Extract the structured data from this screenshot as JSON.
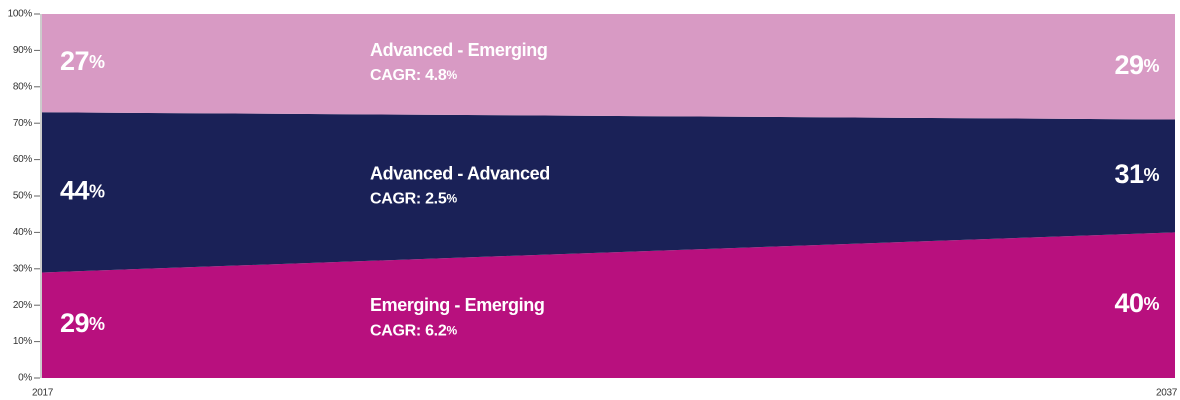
{
  "chart_data": {
    "type": "stacked_area",
    "categories": [
      "2017",
      "2037"
    ],
    "series": [
      {
        "name": "Emerging - Emerging",
        "color": "#b8107e",
        "values": [
          29,
          40
        ],
        "value_labels": [
          "29%",
          "40%"
        ],
        "annotation": "CAGR: 6.2%"
      },
      {
        "name": "Advanced - Advanced",
        "color": "#1a2157",
        "values": [
          44,
          31
        ],
        "value_labels": [
          "44%",
          "31%"
        ],
        "annotation": "CAGR: 2.5%"
      },
      {
        "name": "Advanced - Emerging",
        "color": "#d89ac4",
        "values": [
          27,
          29
        ],
        "value_labels": [
          "27%",
          "29%"
        ],
        "annotation": "CAGR: 4.8%"
      }
    ],
    "ylim": [
      0,
      100
    ],
    "yticks": [
      {
        "value": 0,
        "label": "0%"
      },
      {
        "value": 10,
        "label": "10%"
      },
      {
        "value": 20,
        "label": "20%"
      },
      {
        "value": 30,
        "label": "30%"
      },
      {
        "value": 40,
        "label": "40%"
      },
      {
        "value": 50,
        "label": "50%"
      },
      {
        "value": 60,
        "label": "60%"
      },
      {
        "value": 70,
        "label": "70%"
      },
      {
        "value": 80,
        "label": "80%"
      },
      {
        "value": 90,
        "label": "90%"
      },
      {
        "value": 100,
        "label": "100%"
      }
    ]
  }
}
